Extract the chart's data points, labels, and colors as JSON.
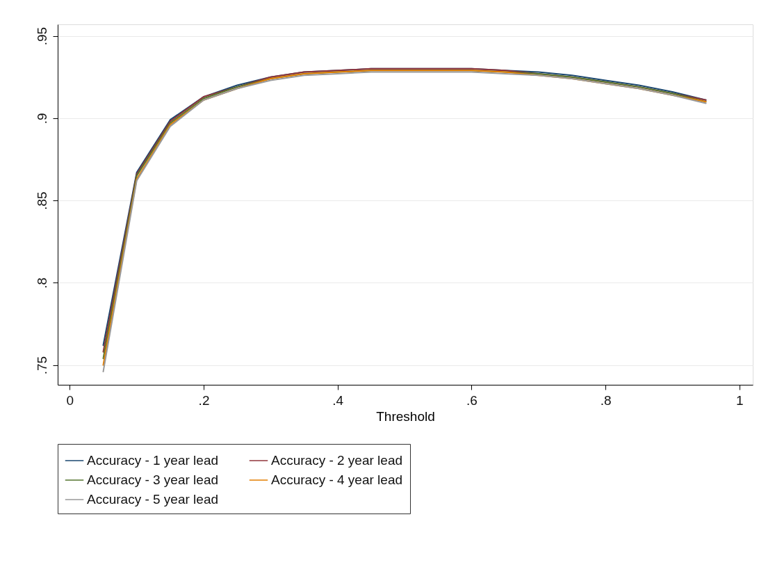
{
  "chart_data": {
    "type": "line",
    "xlabel": "Threshold",
    "x": [
      0.05,
      0.1,
      0.15,
      0.2,
      0.25,
      0.3,
      0.35,
      0.4,
      0.45,
      0.5,
      0.55,
      0.6,
      0.65,
      0.7,
      0.75,
      0.8,
      0.85,
      0.9,
      0.95
    ],
    "series": [
      {
        "name": "Accuracy - 1 year lead",
        "color": "#1a476f",
        "values": [
          0.762,
          0.867,
          0.899,
          0.913,
          0.92,
          0.925,
          0.928,
          0.929,
          0.93,
          0.93,
          0.93,
          0.93,
          0.929,
          0.928,
          0.926,
          0.923,
          0.92,
          0.916,
          0.911
        ]
      },
      {
        "name": "Accuracy - 2 year lead",
        "color": "#90353b",
        "values": [
          0.758,
          0.866,
          0.898,
          0.913,
          0.919,
          0.925,
          0.928,
          0.929,
          0.93,
          0.93,
          0.93,
          0.93,
          0.929,
          0.927,
          0.925,
          0.922,
          0.919,
          0.915,
          0.911
        ]
      },
      {
        "name": "Accuracy - 3 year lead",
        "color": "#55752f",
        "values": [
          0.754,
          0.865,
          0.897,
          0.912,
          0.919,
          0.924,
          0.927,
          0.928,
          0.929,
          0.929,
          0.929,
          0.929,
          0.928,
          0.927,
          0.925,
          0.922,
          0.919,
          0.915,
          0.91
        ]
      },
      {
        "name": "Accuracy - 4 year lead",
        "color": "#e37e00",
        "values": [
          0.75,
          0.863,
          0.896,
          0.911,
          0.918,
          0.924,
          0.927,
          0.928,
          0.929,
          0.929,
          0.929,
          0.929,
          0.928,
          0.926,
          0.924,
          0.921,
          0.918,
          0.914,
          0.91
        ]
      },
      {
        "name": "Accuracy - 5 year lead",
        "color": "#999999",
        "values": [
          0.746,
          0.862,
          0.895,
          0.911,
          0.918,
          0.923,
          0.926,
          0.927,
          0.928,
          0.928,
          0.928,
          0.928,
          0.927,
          0.926,
          0.924,
          0.921,
          0.918,
          0.914,
          0.909
        ]
      }
    ],
    "xlim": [
      -0.018,
      1.02
    ],
    "xticks": [
      0,
      {
        "value": 0.2,
        "label": ".2"
      },
      {
        "value": 0.4,
        "label": ".4"
      },
      {
        "value": 0.6,
        "label": ".6"
      },
      {
        "value": 0.8,
        "label": ".8"
      },
      1
    ],
    "ylim": [
      0.738,
      0.957
    ],
    "yticks": [
      {
        "value": 0.75,
        "label": ".75"
      },
      {
        "value": 0.8,
        "label": ".8"
      },
      {
        "value": 0.85,
        "label": ".85"
      },
      {
        "value": 0.9,
        "label": ".9"
      },
      {
        "value": 0.95,
        "label": ".95"
      }
    ],
    "grid": "y",
    "legend": "bottom",
    "marker": "none",
    "line_style": "solid"
  }
}
